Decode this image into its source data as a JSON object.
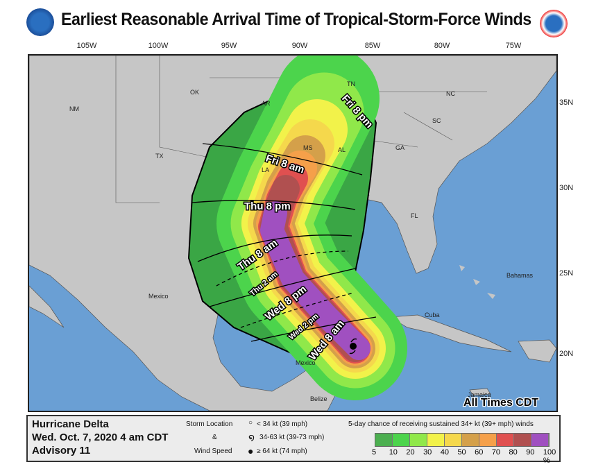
{
  "title": "Earliest Reasonable Arrival Time of Tropical-Storm-Force Winds",
  "logos": {
    "left": "NOAA",
    "right": "National Weather Service"
  },
  "lon_labels": [
    "105W",
    "100W",
    "95W",
    "90W",
    "85W",
    "80W",
    "75W"
  ],
  "lat_labels": [
    "35N",
    "30N",
    "25N",
    "20N"
  ],
  "places": [
    "NM",
    "OK",
    "AR",
    "TN",
    "NC",
    "SC",
    "GA",
    "AL",
    "MS",
    "LA",
    "TX",
    "FL",
    "Mexico",
    "Cuba",
    "Bahamas",
    "Jamaica",
    "Belize",
    "Mexico"
  ],
  "times": [
    "Fri 8 pm",
    "Fri 8 am",
    "Thu 8 pm",
    "Thu 8 am",
    "Thu 2 am",
    "Wed 8 pm",
    "Wed 2 pm",
    "Wed 8 am"
  ],
  "all_times": "All Times CDT",
  "colors": {
    "ocean": "#6a9fd4",
    "land": "#c6c6c6",
    "scale": [
      "#4caf50",
      "#4cd44c",
      "#90e84a",
      "#f2f24a",
      "#f5d84c",
      "#d4a04a",
      "#f5a04a",
      "#e05050",
      "#b05050",
      "#a050c0"
    ]
  },
  "legend": {
    "storm": "Hurricane Delta",
    "date": "Wed. Oct. 7, 2020  4 am CDT",
    "advisory": "Advisory 11",
    "loc1": "Storm Location",
    "loc2": "&",
    "loc3": "Wind Speed",
    "w1": "< 34 kt (39 mph)",
    "w2": "34-63 kt (39-73 mph)",
    "w3": "≥ 64 kt (74 mph)",
    "scale_title": "5-day chance of receiving sustained 34+ kt (39+ mph) winds",
    "scale_ticks": [
      "5",
      "10",
      "20",
      "30",
      "40",
      "50",
      "60",
      "70",
      "80",
      "90",
      "100 %"
    ]
  }
}
